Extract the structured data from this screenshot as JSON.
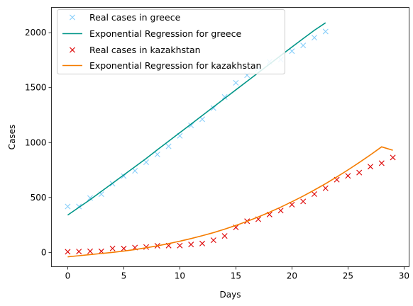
{
  "chart_data": {
    "type": "line",
    "title": "",
    "xlabel": "Days",
    "ylabel": "Cases",
    "xlim": [
      -1.45,
      30.45
    ],
    "ylim": [
      -130,
      2230
    ],
    "xticks": [
      0,
      5,
      10,
      15,
      20,
      25,
      30
    ],
    "yticks": [
      0,
      500,
      1000,
      1500,
      2000
    ],
    "grid": false,
    "legend_position": "top-left",
    "series": [
      {
        "name": "Real cases in greece",
        "kind": "scatter",
        "marker": "x",
        "color": "#87cefa",
        "x": [
          0,
          1,
          2,
          3,
          4,
          5,
          6,
          7,
          8,
          9,
          10,
          11,
          12,
          13,
          14,
          15,
          16,
          17,
          18,
          19,
          20,
          21,
          22,
          23
        ],
        "y": [
          418,
          418,
          495,
          530,
          625,
          695,
          743,
          821,
          892,
          966,
          1061,
          1156,
          1212,
          1314,
          1415,
          1544,
          1613,
          1673,
          1735,
          1755,
          1832,
          1884,
          1955,
          2011
        ]
      },
      {
        "name": "Exponential Regression for greece",
        "kind": "line",
        "color": "#009688",
        "x": [
          0,
          1,
          2,
          3,
          4,
          5,
          6,
          7,
          8,
          9,
          10,
          11,
          12,
          13,
          14,
          15,
          16,
          17,
          18,
          19,
          20,
          21,
          22,
          23
        ],
        "y": [
          340,
          410,
          480,
          555,
          630,
          705,
          780,
          855,
          935,
          1012,
          1090,
          1168,
          1246,
          1324,
          1402,
          1480,
          1558,
          1636,
          1714,
          1792,
          1870,
          1946,
          2022,
          2090
        ]
      },
      {
        "name": "Real cases in kazakhstan",
        "kind": "scatter",
        "marker": "x",
        "color": "#dd0000",
        "x": [
          0,
          1,
          2,
          3,
          4,
          5,
          6,
          7,
          8,
          9,
          10,
          11,
          12,
          13,
          14,
          15,
          16,
          17,
          18,
          19,
          20,
          21,
          22,
          23,
          24,
          25,
          26,
          27,
          28,
          29
        ],
        "y": [
          6,
          8,
          10,
          10,
          36,
          35,
          44,
          49,
          60,
          62,
          62,
          72,
          81,
          111,
          150,
          228,
          284,
          302,
          345,
          381,
          435,
          464,
          531,
          584,
          662,
          697,
          727,
          781,
          812,
          864
        ]
      },
      {
        "name": "Exponential Regression for kazakhstan",
        "kind": "line",
        "color": "#f57c00",
        "x": [
          0,
          1,
          2,
          3,
          4,
          5,
          6,
          7,
          8,
          9,
          10,
          11,
          12,
          13,
          14,
          15,
          16,
          17,
          18,
          19,
          20,
          21,
          22,
          23,
          24,
          25,
          26,
          27,
          28,
          29
        ],
        "y": [
          -40,
          -30,
          -20,
          -10,
          0,
          12,
          26,
          42,
          60,
          80,
          102,
          126,
          152,
          180,
          212,
          246,
          283,
          323,
          366,
          412,
          461,
          513,
          568,
          626,
          687,
          751,
          818,
          888,
          961,
          930
        ]
      }
    ]
  }
}
